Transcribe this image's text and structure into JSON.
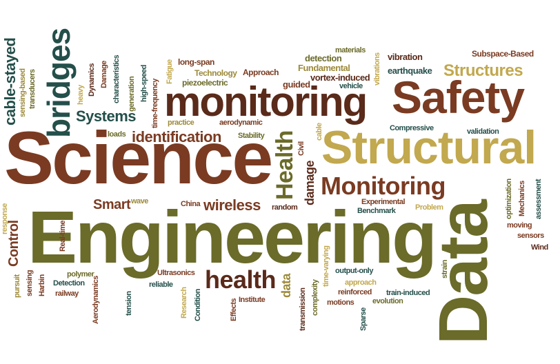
{
  "palette": {
    "brown": "#7a3b22",
    "dark_brown": "#5a2a1a",
    "olive": "#6b6b2a",
    "gold": "#c2a84e",
    "teal": "#244f4a",
    "khaki": "#9c8a3a"
  },
  "words": [
    "Science",
    "Engineering",
    "Data",
    "Structural",
    "Safety",
    "monitoring",
    "bridges",
    "Health",
    "Monitoring",
    "health",
    "Structures",
    "identification",
    "Systems",
    "cable-stayed",
    "wireless",
    "Smart",
    "Control",
    "damage",
    "data",
    "Subspace-Based",
    "vibration",
    "earthquake",
    "detection",
    "materials",
    "Fundamental",
    "vortex-induced",
    "vibrations",
    "vehicle",
    "guided",
    "Approach",
    "Technology",
    "piezoelectric",
    "long-span",
    "Fatigue",
    "high-speed",
    "time-frequency",
    "generation",
    "characteristics",
    "Damage",
    "Dynamics",
    "heavy",
    "transducers",
    "sensing-based",
    "practice",
    "aerodynamic",
    "Stability",
    "loads",
    "Civil",
    "cable",
    "Compressive",
    "validation",
    "optimization",
    "Mechanics",
    "assessment",
    "moving",
    "sensors",
    "Wind",
    "Experimental",
    "Benchmark",
    "Problem",
    "random",
    "China",
    "wave",
    "response",
    "Real-time",
    "pursuit",
    "sensing",
    "Harbin",
    "Detection",
    "railway",
    "polymer",
    "Aerodynamics",
    "tension",
    "reliable",
    "Ultrasonics",
    "Research",
    "Condition",
    "Effects",
    "Institute",
    "transmission",
    "complexity",
    "time-varying",
    "approach",
    "output-only",
    "motions",
    "reinforced",
    "Sparse",
    "train-induced",
    "evolution",
    "strain"
  ]
}
